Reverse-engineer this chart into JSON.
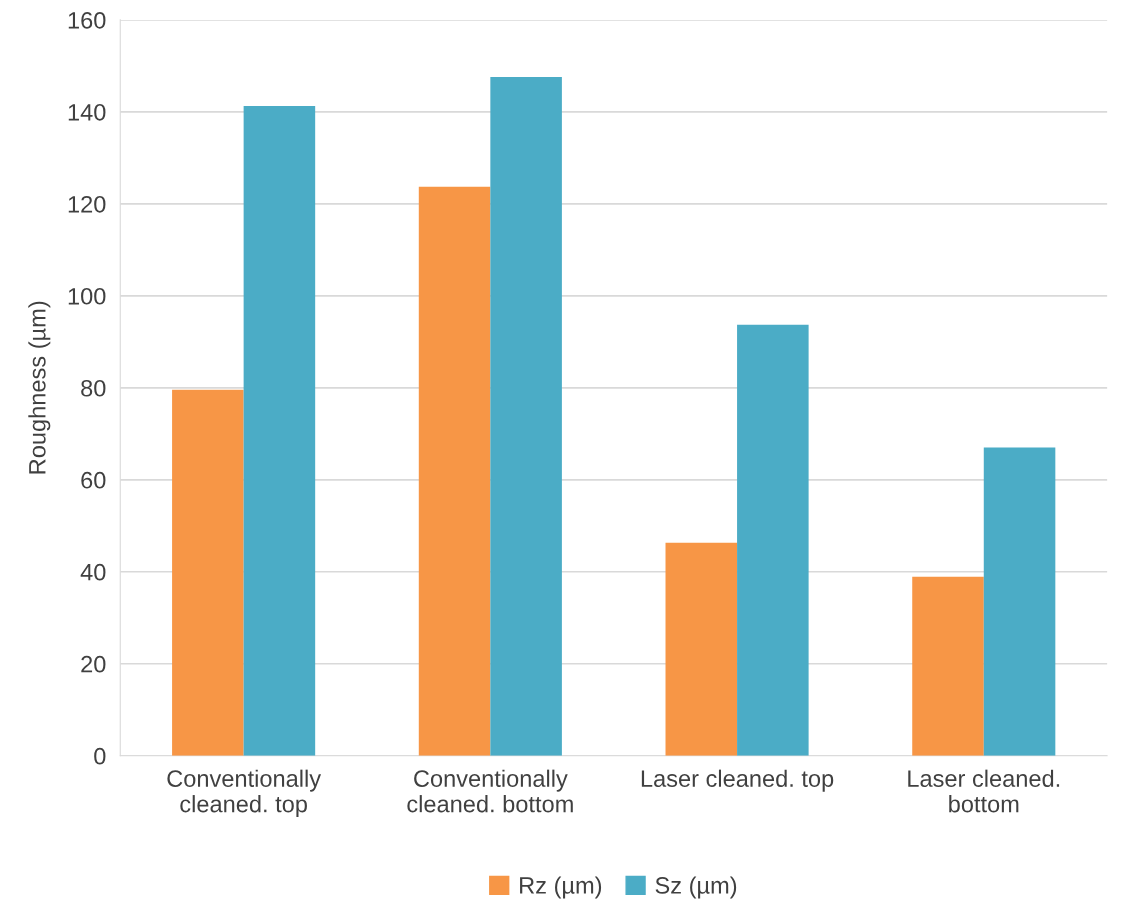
{
  "chart_data": {
    "type": "bar",
    "ylabel": "Roughness (µm)",
    "categories": [
      "Conventionally\ncleaned. top",
      "Conventionally\ncleaned. bottom",
      "Laser cleaned. top",
      "Laser cleaned.\nbottom"
    ],
    "series": [
      {
        "name": "Rz (µm)",
        "color": "#f79646",
        "values": [
          79.6,
          123.7,
          46.3,
          38.9
        ]
      },
      {
        "name": "Sz (µm)",
        "color": "#4bacc6",
        "values": [
          141.3,
          147.6,
          93.7,
          67.0
        ]
      }
    ],
    "ylim": [
      0,
      160
    ],
    "yticks": [
      0,
      20,
      40,
      60,
      80,
      100,
      120,
      140,
      160
    ],
    "grid": "y",
    "legend": "bottom"
  }
}
